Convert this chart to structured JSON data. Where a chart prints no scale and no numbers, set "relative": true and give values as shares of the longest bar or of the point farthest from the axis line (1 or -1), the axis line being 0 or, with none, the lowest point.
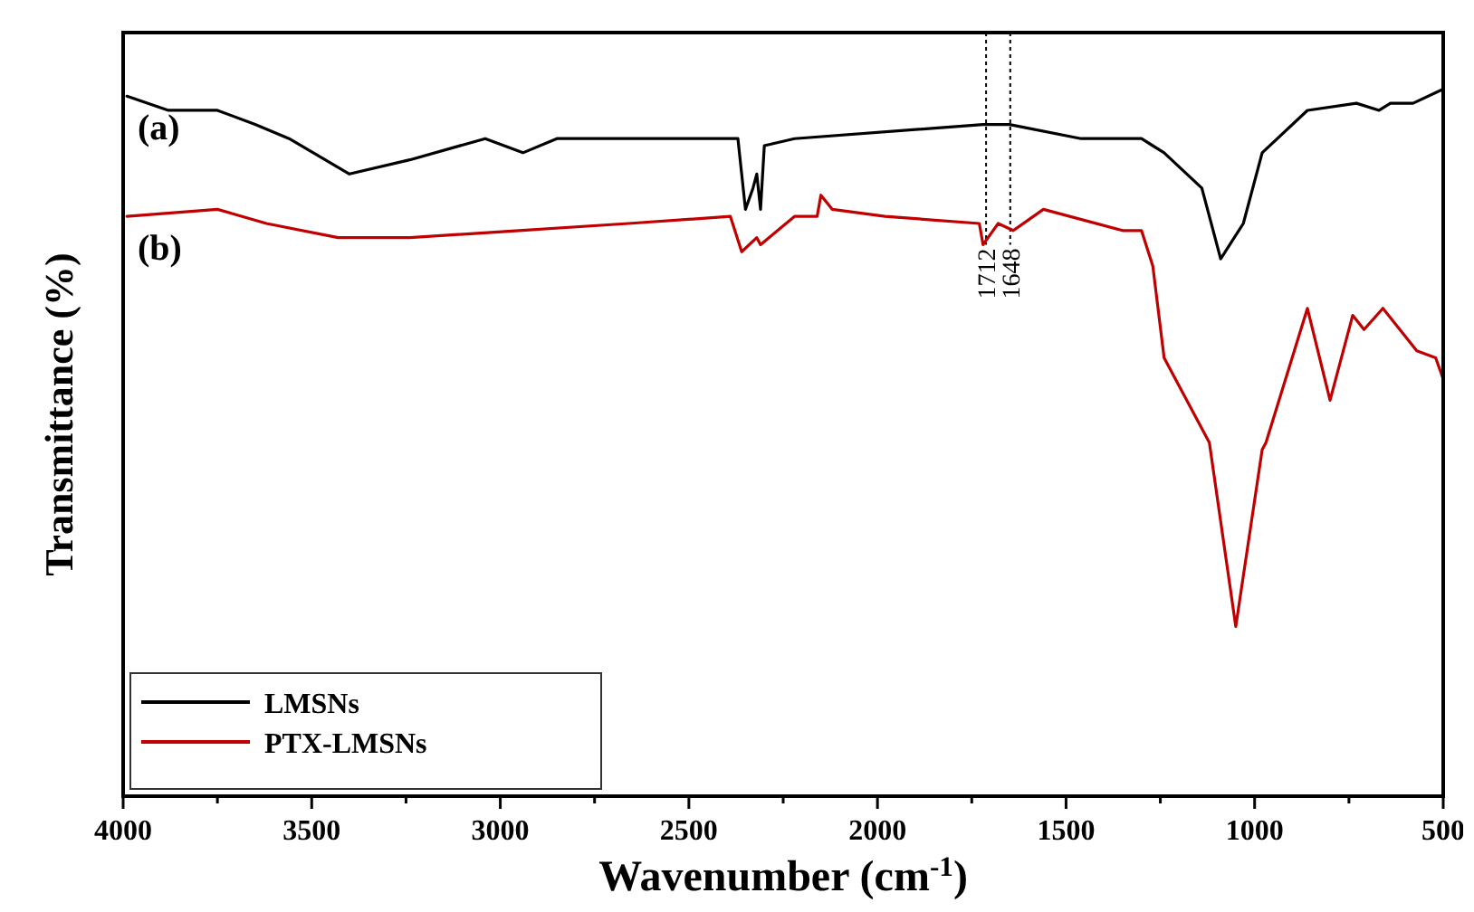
{
  "chart_data": {
    "type": "line",
    "xlabel": "Wavenumber (cm$^{-1}$)",
    "ylabel": "Transmittance (%)",
    "relative": true,
    "xlim": [
      4000,
      500
    ],
    "xticks": [
      4000,
      {
        "value": 3750,
        "label": null
      },
      3500,
      {
        "value": 3250,
        "label": null
      },
      3000,
      {
        "value": 2750,
        "label": null
      },
      2500,
      {
        "value": 2250,
        "label": null
      },
      2000,
      {
        "value": 1750,
        "label": null
      },
      1500,
      {
        "value": 1250,
        "label": null
      },
      1000,
      {
        "value": 750,
        "label": null
      },
      500
    ],
    "legend": "bottom left",
    "grid": false,
    "marker": "none",
    "line_style": "solid",
    "series": [
      {
        "name": "LMSNs",
        "color": "#000000",
        "x": [
          3990,
          3880,
          3750,
          3650,
          3560,
          3400,
          3240,
          3040,
          2940,
          2850,
          2370,
          2360,
          2350,
          2330,
          2320,
          2310,
          2300,
          2220,
          1720,
          1650,
          1460,
          1300,
          1240,
          1140,
          1090,
          1030,
          980,
          860,
          730,
          670,
          640,
          580,
          500
        ],
        "values": [
          0.99,
          0.97,
          0.97,
          0.95,
          0.93,
          0.88,
          0.9,
          0.93,
          0.91,
          0.93,
          0.93,
          0.88,
          0.83,
          0.86,
          0.88,
          0.83,
          0.92,
          0.93,
          0.95,
          0.95,
          0.93,
          0.93,
          0.91,
          0.86,
          0.76,
          0.81,
          0.91,
          0.97,
          0.98,
          0.97,
          0.98,
          0.98,
          1
        ]
      },
      {
        "name": "PTX-LMSNs",
        "color": "#c00000",
        "x": [
          3990,
          3750,
          3620,
          3430,
          3240,
          2950,
          2660,
          2390,
          2360,
          2320,
          2310,
          2220,
          2160,
          2150,
          2120,
          1980,
          1730,
          1720,
          1680,
          1640,
          1560,
          1350,
          1300,
          1270,
          1240,
          1120,
          1050,
          980,
          970,
          860,
          800,
          740,
          710,
          660,
          570,
          520,
          500
        ],
        "values": [
          0.82,
          0.83,
          0.81,
          0.79,
          0.79,
          0.8,
          0.81,
          0.82,
          0.77,
          0.79,
          0.78,
          0.82,
          0.82,
          0.85,
          0.83,
          0.82,
          0.81,
          0.78,
          0.81,
          0.8,
          0.83,
          0.8,
          0.8,
          0.75,
          0.62,
          0.5,
          0.24,
          0.49,
          0.5,
          0.69,
          0.56,
          0.68,
          0.66,
          0.69,
          0.63,
          0.62,
          0.59
        ]
      }
    ],
    "ref_lines": [
      {
        "axis": "x",
        "value": 1712,
        "label": "1712",
        "line_style": "dotted",
        "color": "#000000"
      },
      {
        "axis": "x",
        "value": 1648,
        "label": "1648",
        "line_style": "dotted",
        "color": "#000000"
      }
    ],
    "annotations": [
      "(a)",
      "(b)"
    ]
  }
}
